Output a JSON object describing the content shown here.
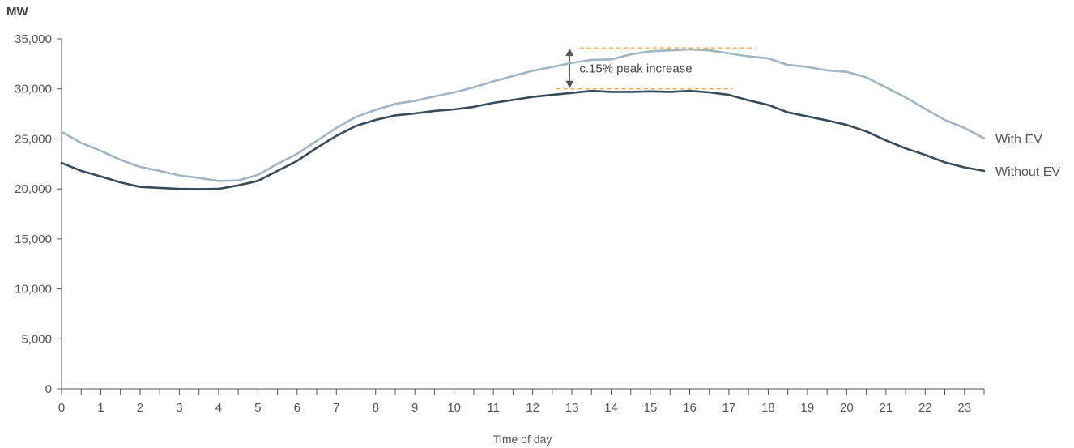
{
  "chart_data": {
    "type": "line",
    "title": "",
    "ylabel": "MW",
    "xlabel": "Time of day",
    "xlim": [
      0,
      23.5
    ],
    "ylim": [
      0,
      35000
    ],
    "x_ticks": [
      0,
      1,
      2,
      3,
      4,
      5,
      6,
      7,
      8,
      9,
      10,
      11,
      12,
      13,
      14,
      15,
      16,
      17,
      18,
      19,
      20,
      21,
      22,
      23
    ],
    "y_ticks": [
      {
        "value": 0,
        "label": "0"
      },
      {
        "value": 5000,
        "label": "5,000"
      },
      {
        "value": 10000,
        "label": "10,000"
      },
      {
        "value": 15000,
        "label": "15,000"
      },
      {
        "value": 20000,
        "label": "20,000"
      },
      {
        "value": 25000,
        "label": "25,000"
      },
      {
        "value": 30000,
        "label": "30,000"
      },
      {
        "value": 35000,
        "label": "35,000"
      }
    ],
    "grid": false,
    "legend": "inline-right",
    "x": [
      0,
      0.5,
      1,
      1.5,
      2,
      2.5,
      3,
      3.5,
      4,
      4.5,
      5,
      5.5,
      6,
      6.5,
      7,
      7.5,
      8,
      8.5,
      9,
      9.5,
      10,
      10.5,
      11,
      11.5,
      12,
      12.5,
      13,
      13.5,
      14,
      14.5,
      15,
      15.5,
      16,
      16.5,
      17,
      17.5,
      18,
      18.5,
      19,
      19.5,
      20,
      20.5,
      21,
      21.5,
      22,
      22.5,
      23,
      23.5
    ],
    "series": [
      {
        "name": "With EV",
        "color": "#9fb4c4",
        "values": [
          25700,
          24600,
          23800,
          22900,
          22200,
          21800,
          21350,
          21100,
          20800,
          20850,
          21400,
          22500,
          23500,
          24800,
          26100,
          27200,
          27900,
          28500,
          28800,
          29250,
          29650,
          30150,
          30750,
          31300,
          31800,
          32200,
          32600,
          32900,
          32950,
          33450,
          33750,
          33850,
          33950,
          33850,
          33550,
          33250,
          33050,
          32400,
          32200,
          31850,
          31700,
          31150,
          30150,
          29150,
          28000,
          26900,
          26100,
          25050
        ]
      },
      {
        "name": "Without EV",
        "color": "#354a5a",
        "values": [
          22600,
          21800,
          21250,
          20650,
          20200,
          20100,
          20000,
          19980,
          20000,
          20350,
          20800,
          21800,
          22800,
          24100,
          25300,
          26300,
          26900,
          27350,
          27550,
          27800,
          27950,
          28200,
          28600,
          28900,
          29200,
          29400,
          29600,
          29800,
          29700,
          29700,
          29750,
          29700,
          29800,
          29650,
          29400,
          28850,
          28400,
          27650,
          27250,
          26850,
          26400,
          25750,
          24850,
          24050,
          23400,
          22650,
          22150,
          21800
        ]
      }
    ],
    "annotation": {
      "text": "c.15% peak increase",
      "x": 13.5,
      "y_top": 34100,
      "y_bottom": 30000,
      "color": "#f0a040",
      "top_range": [
        13.2,
        17.7
      ],
      "bottom_range": [
        12.6,
        17.1
      ]
    }
  }
}
